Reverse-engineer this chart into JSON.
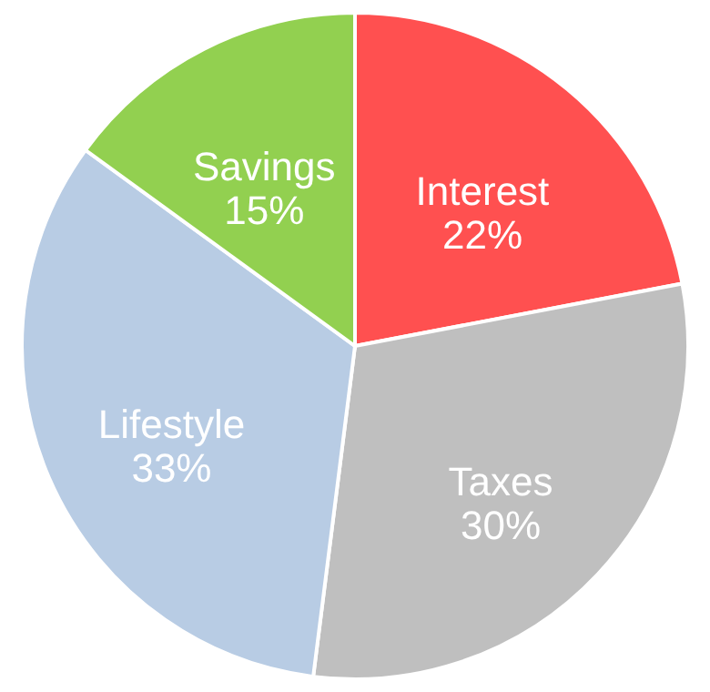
{
  "chart_data": {
    "type": "pie",
    "categories": [
      "Interest",
      "Taxes",
      "Lifestyle",
      "Savings"
    ],
    "values": [
      22,
      30,
      33,
      15
    ],
    "value_labels": [
      "22%",
      "30%",
      "33%",
      "15%"
    ],
    "colors": [
      "#ff5050",
      "#bfbfbf",
      "#b8cce4",
      "#92d050"
    ]
  }
}
